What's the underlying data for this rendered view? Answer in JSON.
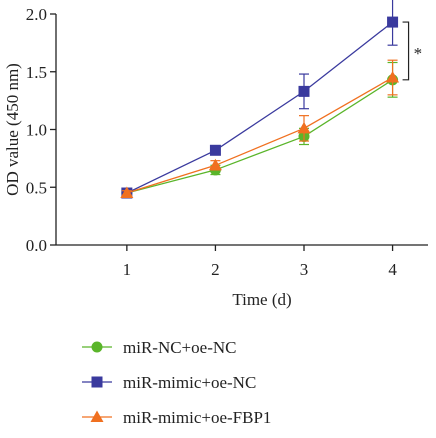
{
  "chart_data": {
    "type": "line",
    "x": [
      1,
      2,
      3,
      4
    ],
    "xlabel": "Time (d)",
    "ylabel": "OD value (450 nm)",
    "xlim": [
      0.2,
      4.4
    ],
    "ylim": [
      0.0,
      2.0
    ],
    "yticks": [
      "0.0",
      "0.5",
      "1.0",
      "1.5",
      "2.0"
    ],
    "xticks": [
      "1",
      "2",
      "3",
      "4"
    ],
    "grid": false,
    "legend_position": "bottom-left",
    "series": [
      {
        "name": "miR-NC+oe-NC",
        "color": "#5ab52a",
        "marker": "circle",
        "values": [
          0.45,
          0.65,
          0.94,
          1.43
        ],
        "errors": [
          0.02,
          0.04,
          0.07,
          0.15
        ]
      },
      {
        "name": "miR-mimic+oe-NC",
        "color": "#3a3a9e",
        "marker": "square",
        "values": [
          0.45,
          0.82,
          1.33,
          1.93
        ],
        "errors": [
          0.02,
          0.03,
          0.15,
          0.2
        ]
      },
      {
        "name": "miR-mimic+oe-FBP1",
        "color": "#f07020",
        "marker": "triangle",
        "values": [
          0.45,
          0.69,
          1.01,
          1.45
        ],
        "errors": [
          0.02,
          0.04,
          0.11,
          0.15
        ]
      }
    ],
    "annotations": [
      {
        "text": "*",
        "between": [
          "miR-mimic+oe-NC",
          "miR-NC+oe-NC"
        ],
        "at_x": 4
      }
    ]
  }
}
